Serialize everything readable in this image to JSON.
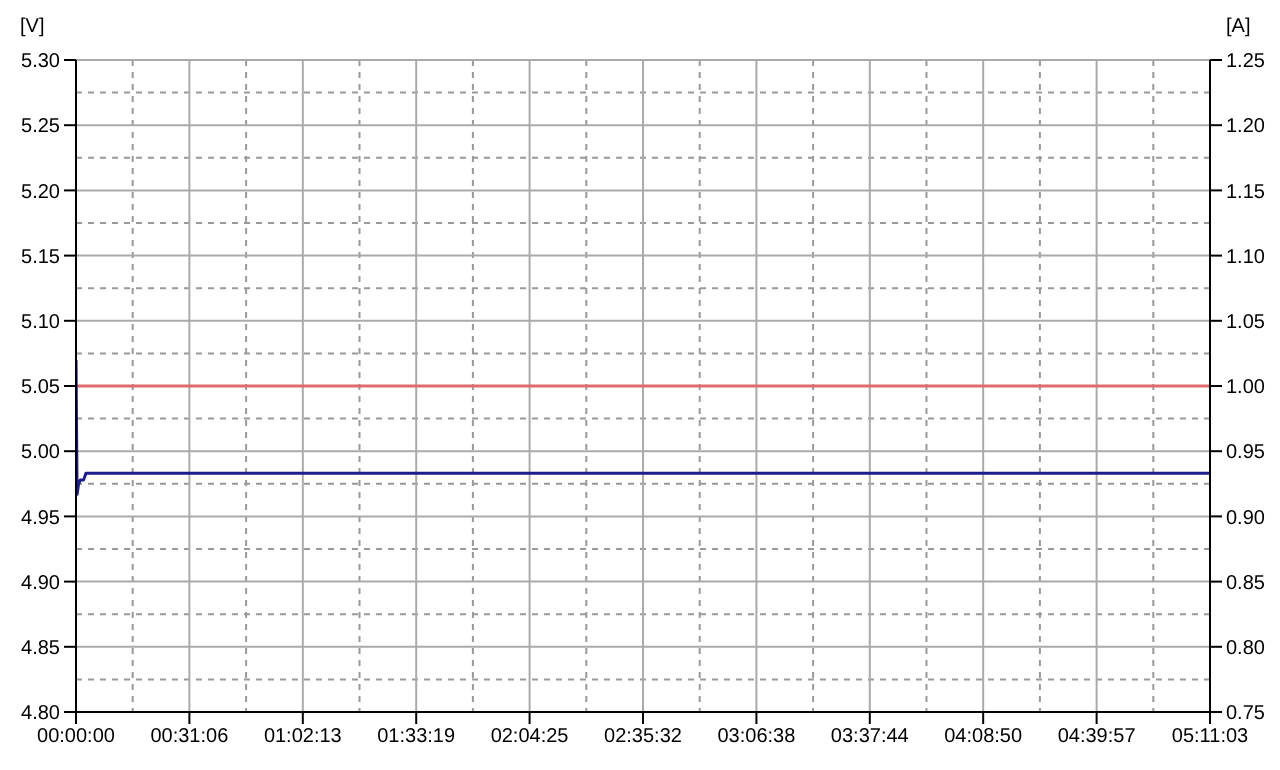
{
  "chart_data": {
    "type": "line",
    "ylabel": "[V]",
    "y2label": "[A]",
    "xlim": [
      0,
      5.18417
    ],
    "xticks": [
      {
        "value": 0,
        "label": "00:00:00"
      },
      {
        "value": 0.51833,
        "label": "00:31:06"
      },
      {
        "value": 1.03694,
        "label": "01:02:13"
      },
      {
        "value": 1.55528,
        "label": "01:33:19"
      },
      {
        "value": 2.07361,
        "label": "02:04:25"
      },
      {
        "value": 2.59222,
        "label": "02:35:32"
      },
      {
        "value": 3.11056,
        "label": "03:06:38"
      },
      {
        "value": 3.62889,
        "label": "03:37:44"
      },
      {
        "value": 4.14722,
        "label": "04:08:50"
      },
      {
        "value": 4.66583,
        "label": "04:39:57"
      },
      {
        "value": 5.18417,
        "label": "05:11:03"
      }
    ],
    "ylim": [
      4.8,
      5.3
    ],
    "yticks": [
      {
        "value": 4.8,
        "label": "4.80"
      },
      4.85,
      {
        "value": 4.9,
        "label": "4.90"
      },
      4.95,
      {
        "value": 5.0,
        "label": "5.00"
      },
      5.05,
      {
        "value": 5.1,
        "label": "5.10"
      },
      5.15,
      {
        "value": 5.2,
        "label": "5.20"
      },
      5.25,
      {
        "value": 5.3,
        "label": "5.30"
      }
    ],
    "y2lim": [
      0.75,
      1.25
    ],
    "y2ticks": [
      0.75,
      {
        "value": 0.8,
        "label": "0.80"
      },
      0.85,
      {
        "value": 0.9,
        "label": "0.90"
      },
      0.95,
      {
        "value": 1.0,
        "label": "1.00"
      },
      1.05,
      {
        "value": 1.1,
        "label": "1.10"
      },
      1.15,
      {
        "value": 1.2,
        "label": "1.20"
      },
      1.25
    ],
    "grid": true,
    "marker": "none",
    "line_style": "solid",
    "series": [
      {
        "color": "#e06b6b",
        "axis": "y2",
        "x": [
          0,
          5.18417
        ],
        "values": [
          1.0,
          1.0
        ]
      },
      {
        "color": "#1c1c8c",
        "x": [
          0,
          0.005,
          0.012,
          0.02,
          0.035,
          0.045,
          5.18417
        ],
        "values": [
          5.07,
          4.967,
          4.975,
          4.978,
          4.978,
          4.983,
          4.983
        ]
      }
    ]
  }
}
